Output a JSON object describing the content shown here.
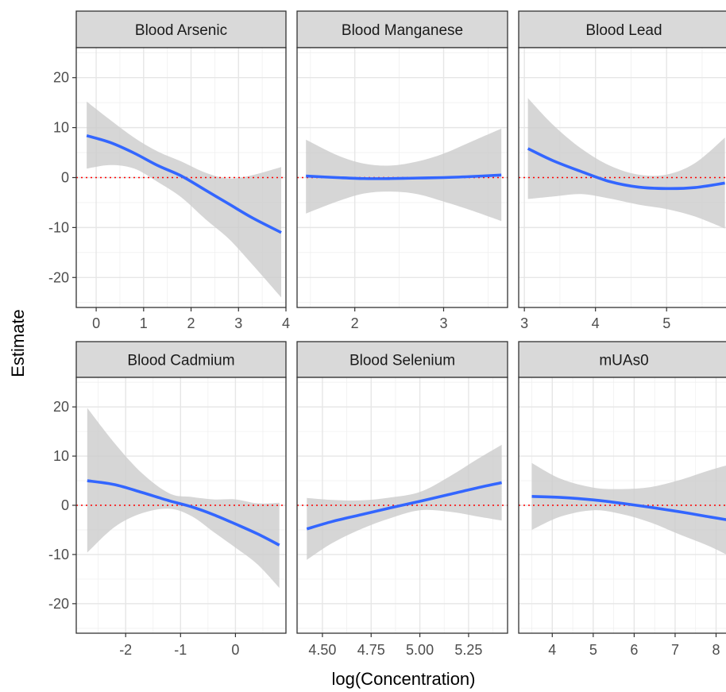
{
  "chart_data": {
    "type": "line",
    "layout": "facet grid, 2 rows x 3 columns, shared y axis",
    "ylabel": "Estimate",
    "xlabel": "log(Concentration)",
    "ylim": [
      -26,
      26
    ],
    "y_ticks": [
      -20,
      -10,
      0,
      10,
      20
    ],
    "y_tick_labels": [
      "-20",
      "-10",
      "0",
      "10",
      "20"
    ],
    "reference_line": {
      "y": 0,
      "color": "#ff0000",
      "style": "dotted"
    },
    "grid": true,
    "panel_background": "#ffffff",
    "strip_background": "#d9d9d9",
    "line_color": "#3366ff",
    "ribbon_color": "#cccccc",
    "facets": [
      {
        "title": "Blood Arsenic",
        "xlim": [
          -0.42,
          4.0
        ],
        "x_ticks": [
          0,
          1,
          2,
          3,
          4
        ],
        "x_tick_labels": [
          "0",
          "1",
          "2",
          "3",
          "4"
        ],
        "x": [
          -0.2,
          0.3,
          0.8,
          1.3,
          1.8,
          2.3,
          2.8,
          3.3,
          3.9
        ],
        "y": [
          8.4,
          7.0,
          4.9,
          2.4,
          0.3,
          -2.5,
          -5.3,
          -8.1,
          -11.0
        ],
        "ymin": [
          1.8,
          2.5,
          1.8,
          -0.9,
          -4.0,
          -8.3,
          -12.3,
          -17.5,
          -24.0
        ],
        "ymax": [
          15.2,
          11.5,
          8.0,
          5.2,
          3.2,
          1.0,
          -0.2,
          0.5,
          2.1
        ]
      },
      {
        "title": "Blood Manganese",
        "xlim": [
          1.35,
          3.72
        ],
        "x_ticks": [
          2,
          3
        ],
        "x_tick_labels": [
          "2",
          "3"
        ],
        "x": [
          1.45,
          1.8,
          2.1,
          2.4,
          2.7,
          3.0,
          3.3,
          3.65
        ],
        "y": [
          0.3,
          0.0,
          -0.2,
          -0.2,
          -0.1,
          0.0,
          0.2,
          0.5
        ],
        "ymin": [
          -7.2,
          -4.8,
          -3.2,
          -2.8,
          -3.3,
          -4.8,
          -6.5,
          -8.7
        ],
        "ymax": [
          7.6,
          4.5,
          2.8,
          2.4,
          3.2,
          4.8,
          7.1,
          9.8
        ]
      },
      {
        "title": "Blood Lead",
        "xlim": [
          2.92,
          5.88
        ],
        "x_ticks": [
          3,
          4,
          5
        ],
        "x_tick_labels": [
          "3",
          "4",
          "5"
        ],
        "x": [
          3.05,
          3.4,
          3.8,
          4.2,
          4.6,
          5.0,
          5.4,
          5.82
        ],
        "y": [
          5.8,
          3.4,
          1.2,
          -0.8,
          -1.9,
          -2.2,
          -2.0,
          -1.1
        ],
        "ymin": [
          -4.3,
          -3.8,
          -3.3,
          -4.2,
          -5.4,
          -6.3,
          -7.8,
          -10.2
        ],
        "ymax": [
          15.9,
          10.6,
          5.8,
          2.4,
          0.6,
          0.6,
          2.9,
          8.0
        ]
      },
      {
        "title": "Blood Cadmium",
        "xlim": [
          -2.9,
          0.92
        ],
        "x_ticks": [
          -2,
          -1,
          0
        ],
        "x_tick_labels": [
          "-2",
          "-1",
          "0"
        ],
        "x": [
          -2.7,
          -2.2,
          -1.7,
          -1.2,
          -0.8,
          -0.4,
          0.0,
          0.4,
          0.8
        ],
        "y": [
          5.0,
          4.2,
          2.6,
          0.9,
          -0.3,
          -1.9,
          -3.8,
          -5.8,
          -8.1
        ],
        "ymin": [
          -9.6,
          -4.4,
          -1.6,
          -0.7,
          -2.2,
          -5.4,
          -8.6,
          -12.0,
          -16.8
        ],
        "ymax": [
          19.8,
          12.6,
          6.5,
          2.4,
          1.7,
          1.2,
          1.2,
          0.4,
          0.5
        ]
      },
      {
        "title": "Blood Selenium",
        "xlim": [
          4.37,
          5.45
        ],
        "x_ticks": [
          4.5,
          4.75,
          5.0,
          5.25
        ],
        "x_tick_labels": [
          "4.50",
          "4.75",
          "5.00",
          "5.25"
        ],
        "x": [
          4.42,
          4.55,
          4.7,
          4.85,
          5.0,
          5.15,
          5.3,
          5.42
        ],
        "y": [
          -4.8,
          -3.3,
          -1.9,
          -0.5,
          0.8,
          2.2,
          3.6,
          4.6
        ],
        "ymin": [
          -11.1,
          -7.7,
          -4.8,
          -2.6,
          -1.0,
          -1.3,
          -2.3,
          -3.1
        ],
        "ymax": [
          1.5,
          1.1,
          1.0,
          1.6,
          2.7,
          5.8,
          9.5,
          12.3
        ]
      },
      {
        "title": "mUAs0",
        "xlim": [
          3.18,
          8.32
        ],
        "x_ticks": [
          4,
          5,
          6,
          7,
          8
        ],
        "x_tick_labels": [
          "4",
          "5",
          "6",
          "7",
          "8"
        ],
        "x": [
          3.5,
          4.2,
          5.0,
          5.7,
          6.4,
          7.1,
          7.8,
          8.3
        ],
        "y": [
          1.8,
          1.6,
          1.1,
          0.4,
          -0.4,
          -1.3,
          -2.3,
          -3.0
        ],
        "ymin": [
          -5.0,
          -2.3,
          -1.0,
          -1.8,
          -3.5,
          -5.9,
          -8.2,
          -10.2
        ],
        "ymax": [
          8.6,
          5.4,
          3.6,
          3.3,
          3.7,
          5.1,
          7.0,
          8.2
        ]
      }
    ]
  }
}
